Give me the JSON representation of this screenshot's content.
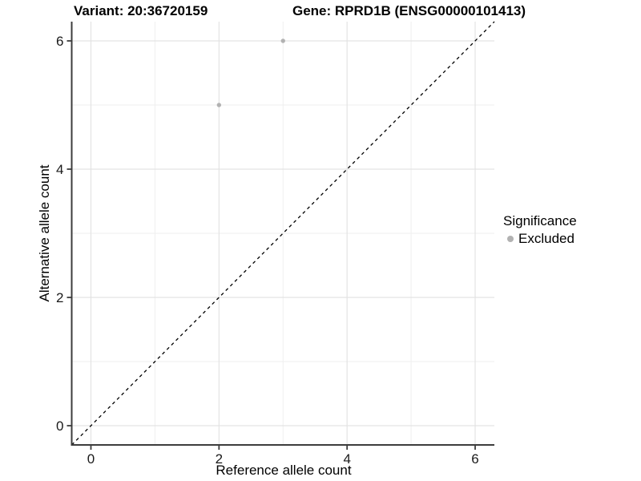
{
  "chart_data": {
    "type": "scatter",
    "title_left": "Variant: 20:36720159",
    "title_right": "Gene: RPRD1B (ENSG00000101413)",
    "xlabel": "Reference allele count",
    "ylabel": "Alternative allele count",
    "xlim": [
      -0.3,
      6.3
    ],
    "ylim": [
      -0.3,
      6.3
    ],
    "xticks": [
      0,
      2,
      4,
      6
    ],
    "yticks": [
      0,
      2,
      4,
      6
    ],
    "minor_xticks": [
      1,
      3,
      5
    ],
    "minor_yticks": [
      1,
      3,
      5
    ],
    "grid": "major and minor gridlines on white background",
    "series": [
      {
        "name": "Excluded",
        "color": "#b2b2b2",
        "points": [
          {
            "x": 2,
            "y": 5
          },
          {
            "x": 3,
            "y": 6
          }
        ]
      }
    ],
    "reference_line": {
      "type": "identity y=x",
      "style": "dashed",
      "color": "#000000"
    },
    "legend": {
      "position": "right",
      "title": "Significance",
      "items": [
        {
          "label": "Excluded",
          "color": "#b2b2b2"
        }
      ]
    }
  },
  "colors": {
    "background": "#ffffff",
    "axis_line": "#3d3d3d",
    "grid_major": "#e3e3e3",
    "grid_minor": "#efefef",
    "tick_label": "#1a1a1a",
    "point": "#b2b2b2"
  }
}
